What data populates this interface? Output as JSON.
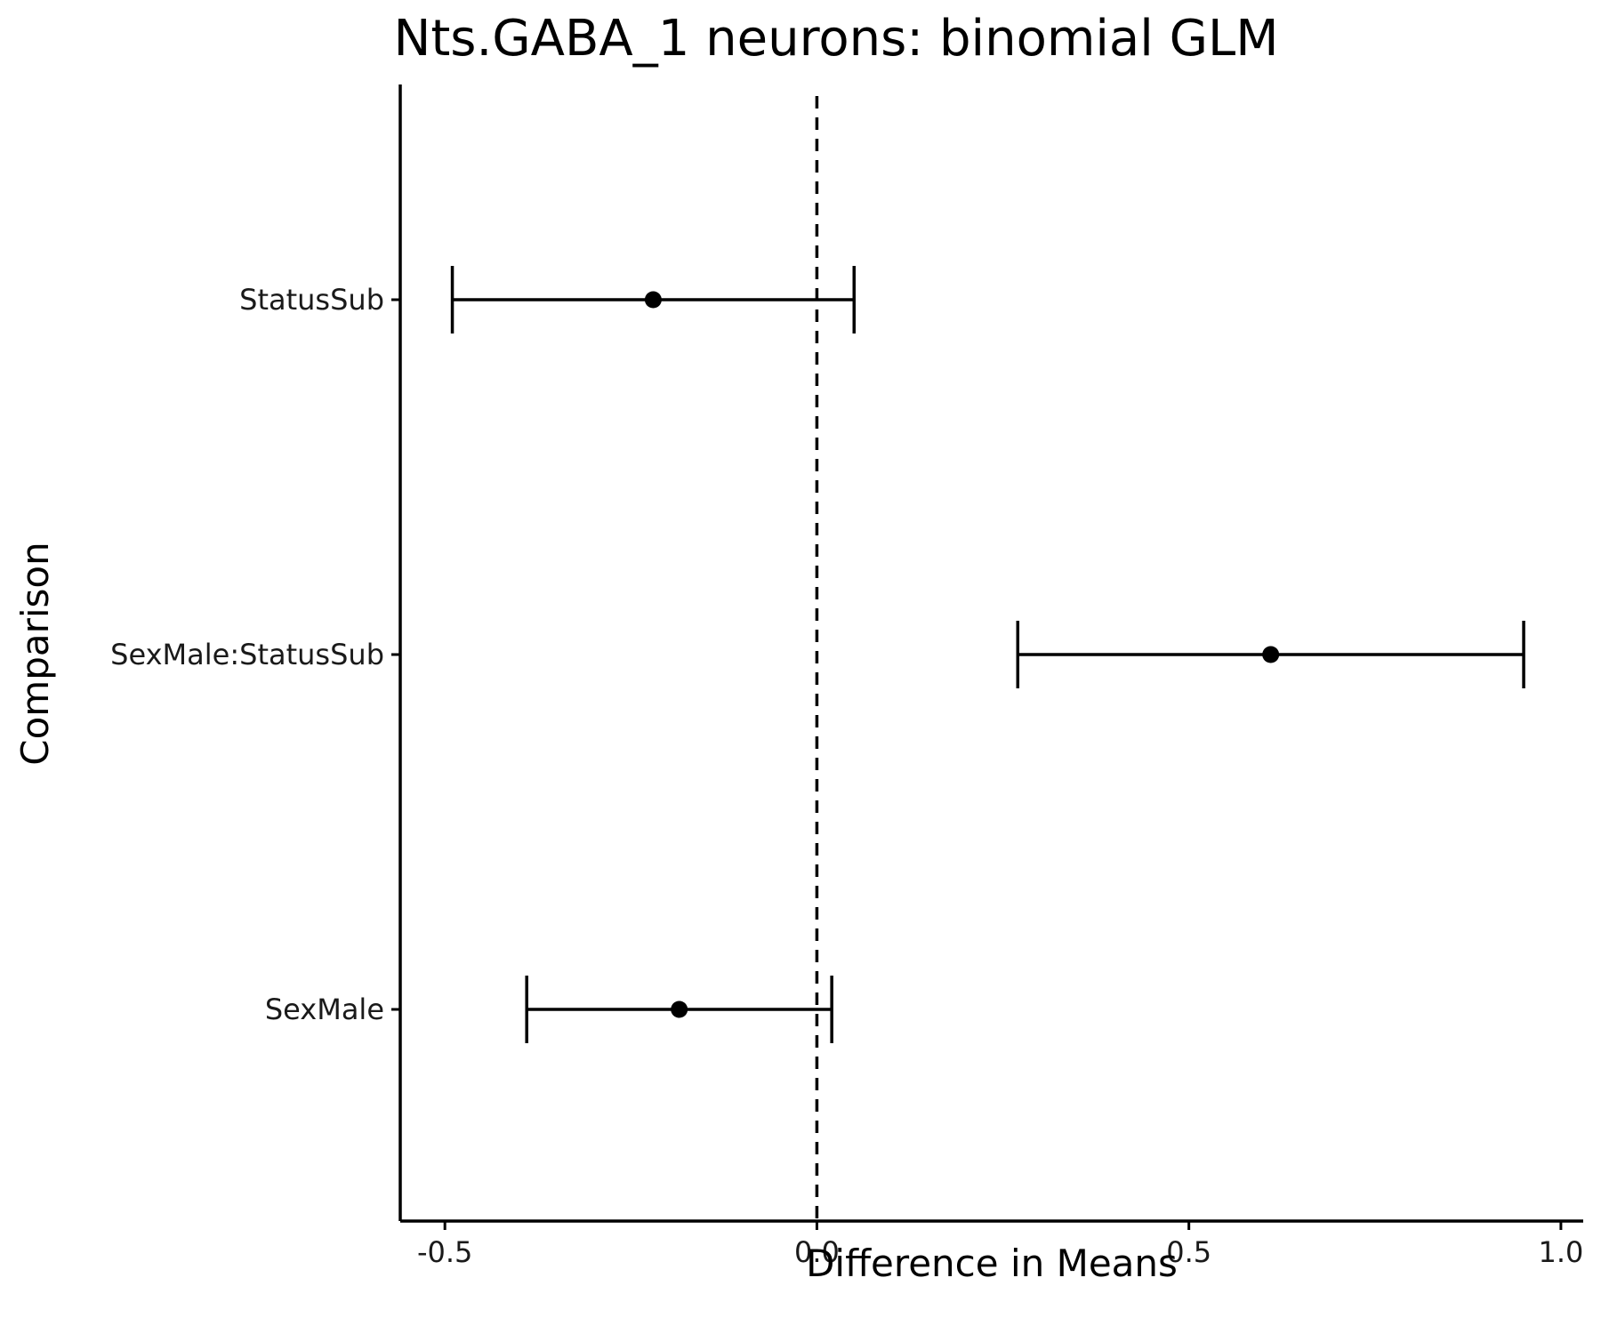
{
  "chart_data": {
    "type": "errorbar",
    "title": "Nts.GABA_1 neurons: binomial GLM",
    "xlabel": "Difference in Means",
    "ylabel": "Comparison",
    "xlim": [
      -0.56,
      1.03
    ],
    "x_ticks": [
      -0.5,
      0.0,
      0.5,
      1.0
    ],
    "x_tick_labels": [
      "-0.5",
      "0.0",
      "0.5",
      "1.0"
    ],
    "reference_line": {
      "x": 0.0,
      "style": "dashed"
    },
    "categories": [
      "StatusSub",
      "SexMale:StatusSub",
      "SexMale"
    ],
    "estimates": [
      {
        "label": "StatusSub",
        "estimate": -0.22,
        "lower": -0.49,
        "upper": 0.05
      },
      {
        "label": "SexMale:StatusSub",
        "estimate": 0.61,
        "lower": 0.27,
        "upper": 0.95
      },
      {
        "label": "SexMale",
        "estimate": -0.185,
        "lower": -0.39,
        "upper": 0.02
      }
    ],
    "grid": false,
    "legend": "none",
    "colors": {
      "marks": "#000000",
      "background": "#ffffff"
    }
  }
}
